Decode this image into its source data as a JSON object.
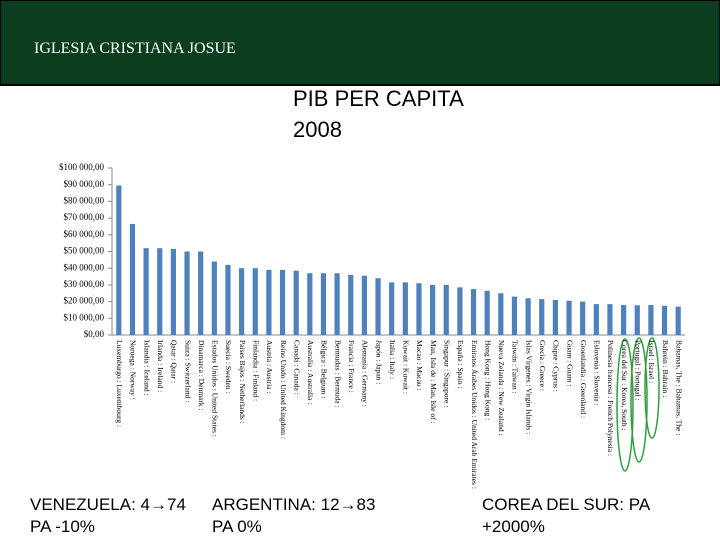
{
  "header": {
    "title": "IGLESIA CRISTIANA JOSUE"
  },
  "chart_data": {
    "type": "bar",
    "title_lines": [
      "PIB PER CAPITA",
      "2008"
    ],
    "categories": [
      "Luxemburgo : Luxembourg :",
      "Noruega : Norway :",
      "Islandia : Iceland :",
      "Irlanda : Ireland :",
      "Qatar : Qatar :",
      "Suiza : Switzerland :",
      "Dinamarca : Denmark :",
      "Estados Unidos : United States :",
      "Suecia : Sweden :",
      "Países Bajos : Netherlands :",
      "Finlandia : Finland :",
      "Austria : Austria :",
      "Reino Unido : United Kingdom :",
      "Canadá : Canada :",
      "Australia : Australia :",
      "Bélgica : Belgium :",
      "Bermudas : Bermuda :",
      "Francia : France :",
      "Alemania : Germany :",
      "Japón : Japan :",
      "Italia : Italy :",
      "Kuwait : Kuwait :",
      "Macao : Macau :",
      "Man, Isla de : Man, Isle of :",
      "Singapur : Singapore :",
      "España : Spain :",
      "Emiratos Árabes Unidos : United Arab Emirates :",
      "Hong Kong : Hong Kong :",
      "Nueva Zelanda : New Zealand :",
      "Taiwán : Taiwan :",
      "Islas Vírgenes : Virgin Islands :",
      "Grecia : Greece :",
      "Chipre : Cyprus :",
      "Guam : Guam :",
      "Groenlandia : Greenland :",
      "Eslovenia : Slovenia :",
      "Polinesia francesa : French Polynesia :",
      "Corea del Sur : Korea, South :",
      "Portugal : Portugal :",
      "Israel : Israel :",
      "Bahrein : Bahrain :",
      "Bahamas, The : Bahamas, The :"
    ],
    "values": [
      89500,
      66500,
      52000,
      52000,
      51500,
      50000,
      50000,
      44000,
      42000,
      40000,
      40000,
      39000,
      39000,
      38500,
      37000,
      37000,
      37000,
      36000,
      35500,
      34000,
      31500,
      31500,
      31000,
      30000,
      30000,
      28500,
      27500,
      26500,
      25000,
      23000,
      22000,
      21500,
      21000,
      20500,
      20000,
      18500,
      18500,
      18000,
      17800,
      18000,
      17500,
      17000
    ],
    "color": "#4f81bd",
    "ylim": [
      0,
      100000
    ],
    "yticks": [
      {
        "value": 0,
        "label": "$0,00"
      },
      {
        "value": 10000,
        "label": "$10 000,00"
      },
      {
        "value": 20000,
        "label": "$20 000,00"
      },
      {
        "value": 30000,
        "label": "$30 000,00"
      },
      {
        "value": 40000,
        "label": "$40 000,00"
      },
      {
        "value": 50000,
        "label": "$50 000,00"
      },
      {
        "value": 60000,
        "label": "$60 000,00"
      },
      {
        "value": 70000,
        "label": "$70 000,00"
      },
      {
        "value": 80000,
        "label": "$80 000,00"
      },
      {
        "value": 90000,
        "label": "$90 000,00"
      },
      {
        "value": 100000,
        "label": "$100 000,00"
      }
    ],
    "grid": false,
    "annotations": [
      {
        "lines": [
          "VENEZUELA: 4→74",
          "PA  -10%"
        ]
      },
      {
        "lines": [
          "ARGENTINA: 12→83",
          "PA 0%"
        ]
      },
      {
        "lines": [
          "COREA DEL SUR: PA",
          "+2000%"
        ]
      }
    ]
  }
}
